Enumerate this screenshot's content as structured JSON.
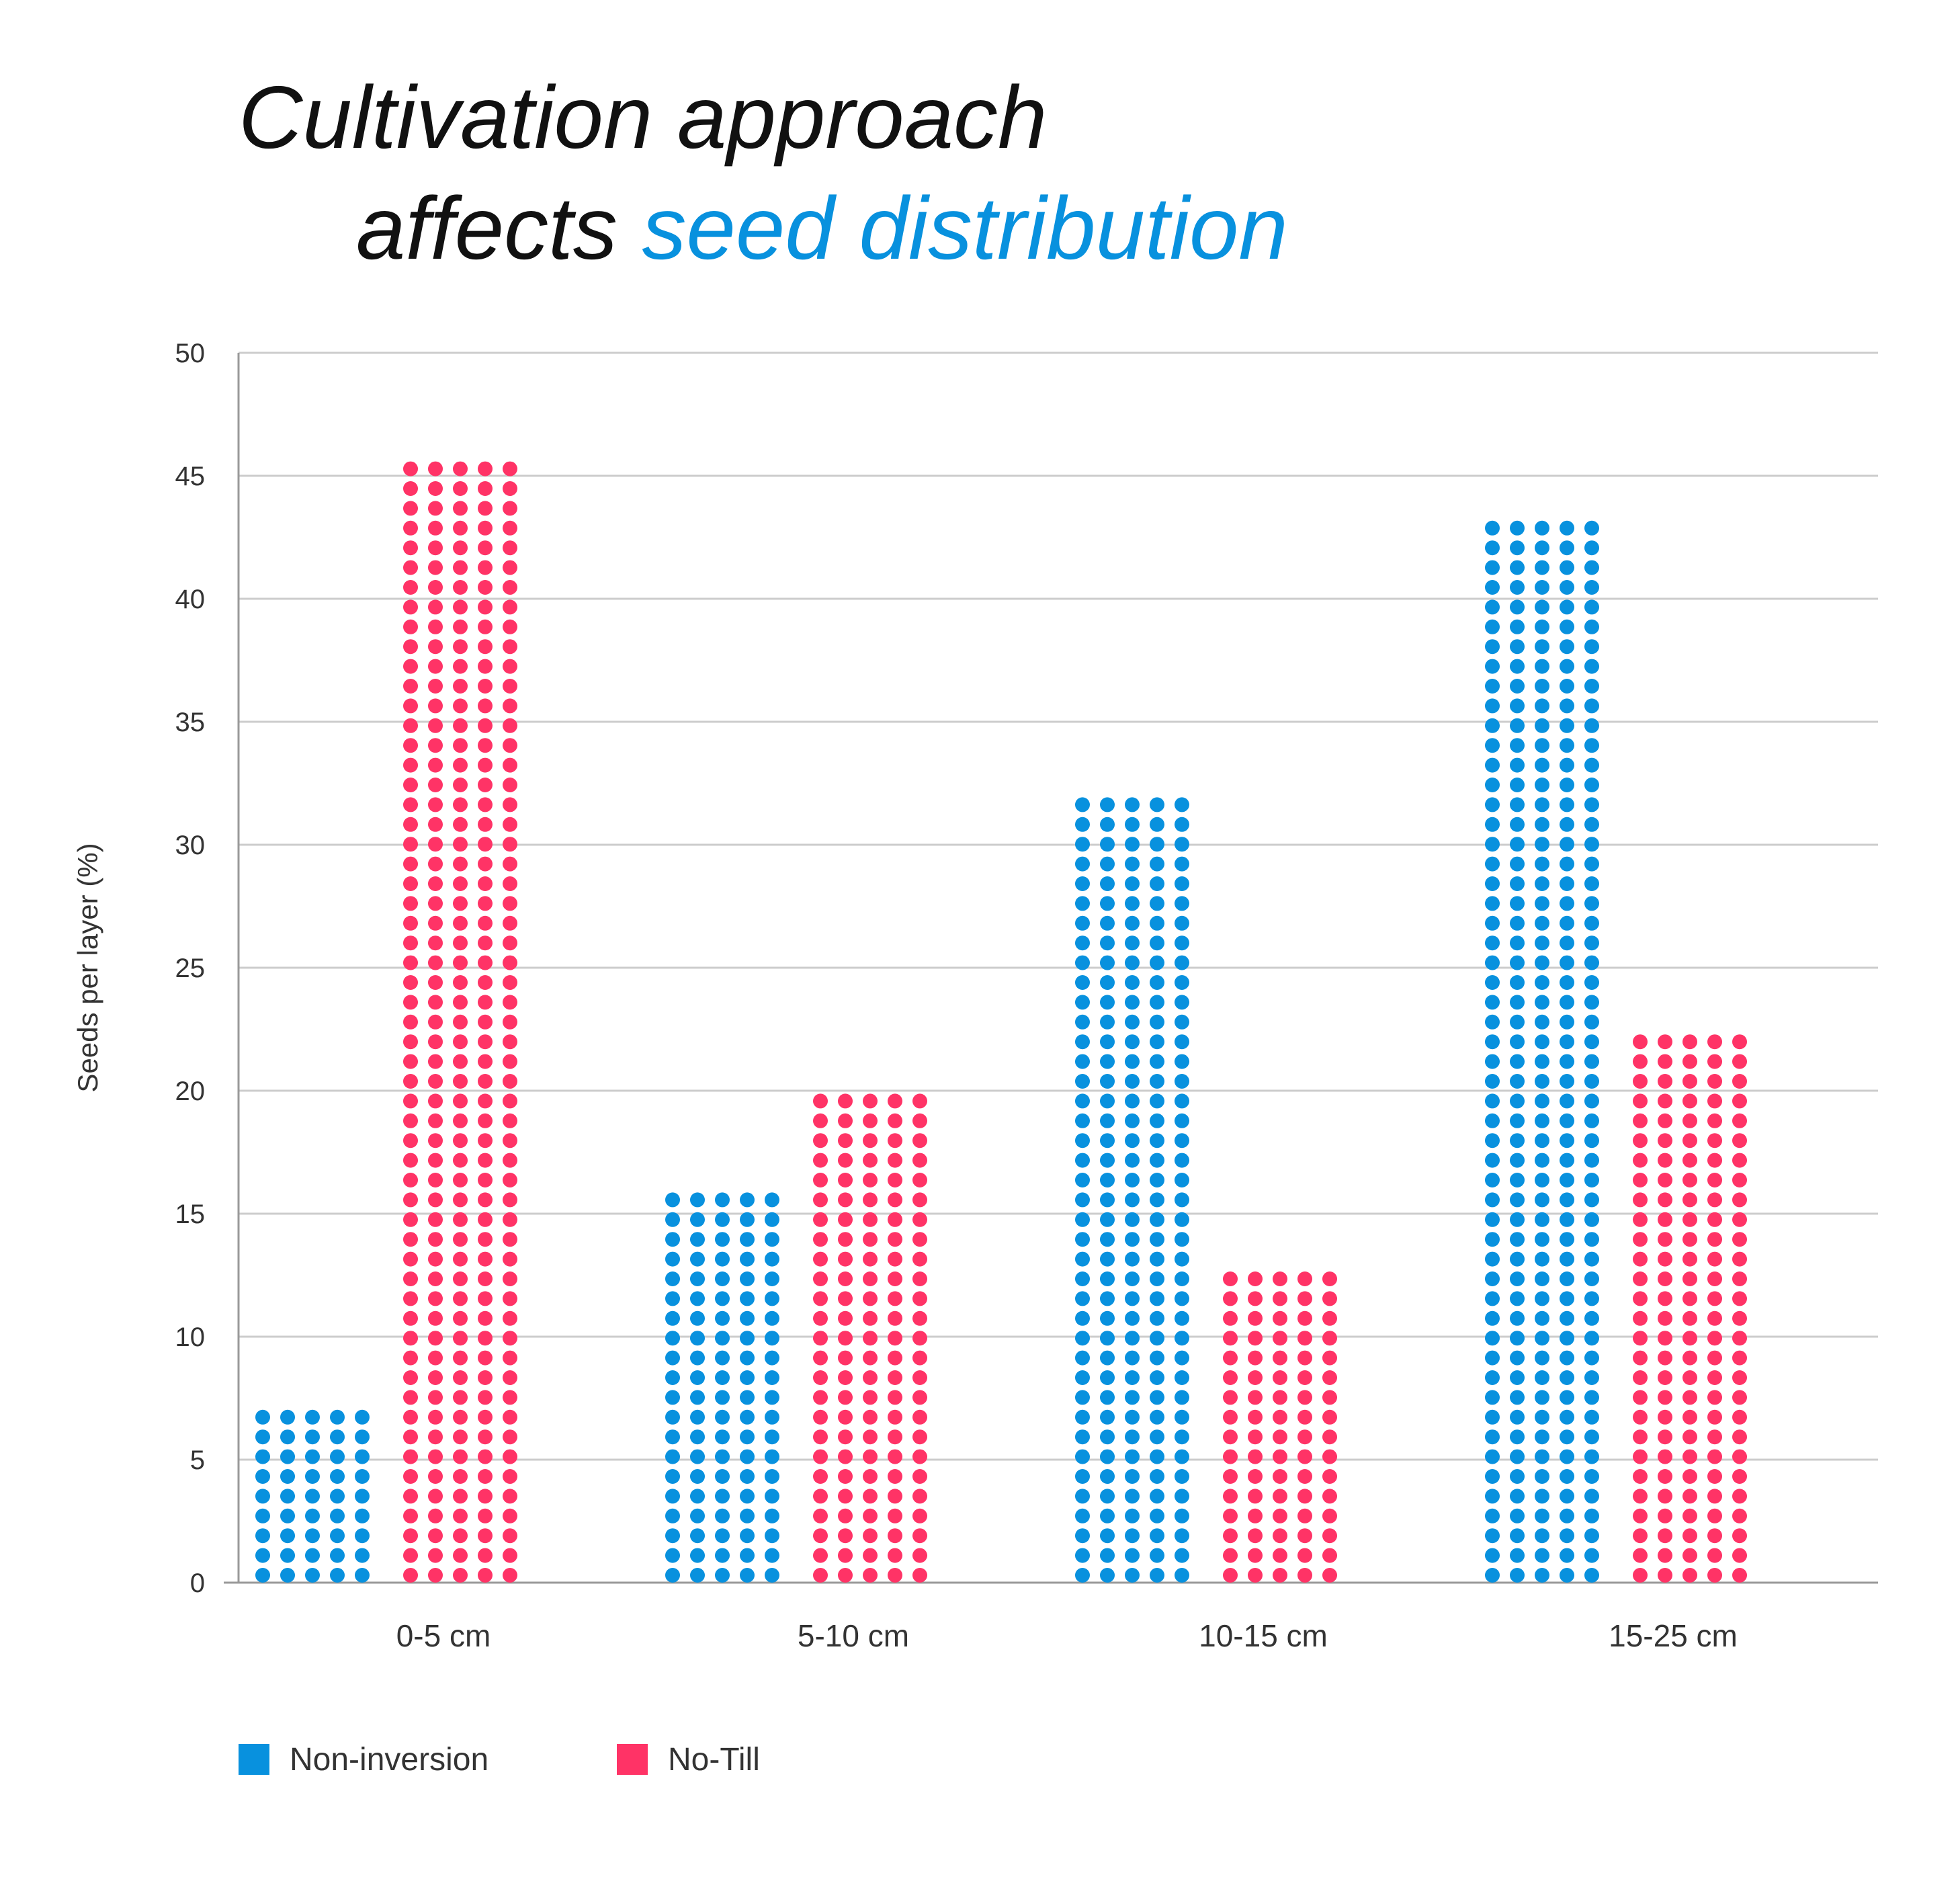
{
  "title": {
    "line1": "Cultivation approach",
    "line2_prefix": "affects ",
    "line2_highlight": "seed distribution"
  },
  "colors": {
    "non_inversion": "#0891DE",
    "no_till": "#FF3366",
    "grid": "#CCCCCC",
    "axis": "#999999"
  },
  "chart_data": {
    "type": "bar",
    "style": "dot-matrix",
    "categories": [
      "0-5 cm",
      "5-10 cm",
      "10-15 cm",
      "15-25 cm"
    ],
    "series": [
      {
        "name": "Non-inversion",
        "values": [
          7.8,
          15.9,
          32.1,
          43.4
        ]
      },
      {
        "name": "No-Till",
        "values": [
          45.9,
          20.0,
          12.7,
          22.4
        ]
      }
    ],
    "title": "Cultivation approach affects seed distribution",
    "xlabel": "",
    "ylabel": "Seeds per layer (%)",
    "ylim": [
      0,
      50
    ],
    "yticks": [
      0,
      5,
      10,
      15,
      20,
      25,
      30,
      35,
      40,
      45,
      50
    ],
    "grid": true,
    "legend_position": "bottom-left"
  }
}
